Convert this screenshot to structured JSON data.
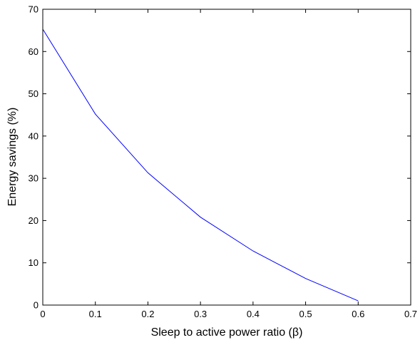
{
  "chart_data": {
    "type": "line",
    "title": "",
    "xlabel": "Sleep to active power ratio (β)",
    "ylabel": "Energy savings (%)",
    "xlim": [
      0,
      0.7
    ],
    "ylim": [
      0,
      70
    ],
    "xticks": [
      0,
      0.1,
      0.2,
      0.3,
      0.4,
      0.5,
      0.6,
      0.7
    ],
    "yticks": [
      0,
      10,
      20,
      30,
      40,
      50,
      60,
      70
    ],
    "xtick_labels": [
      "0",
      "0.1",
      "0.2",
      "0.3",
      "0.4",
      "0.5",
      "0.6",
      "0.7"
    ],
    "ytick_labels": [
      "0",
      "10",
      "20",
      "30",
      "40",
      "50",
      "60",
      "70"
    ],
    "grid": false,
    "legend": "none",
    "series": [
      {
        "color": "#0000ff",
        "x": [
          0,
          0.1,
          0.2,
          0.3,
          0.4,
          0.5,
          0.6
        ],
        "y": [
          65.3,
          45.2,
          31.3,
          20.8,
          12.8,
          6.3,
          1.0
        ]
      }
    ]
  }
}
